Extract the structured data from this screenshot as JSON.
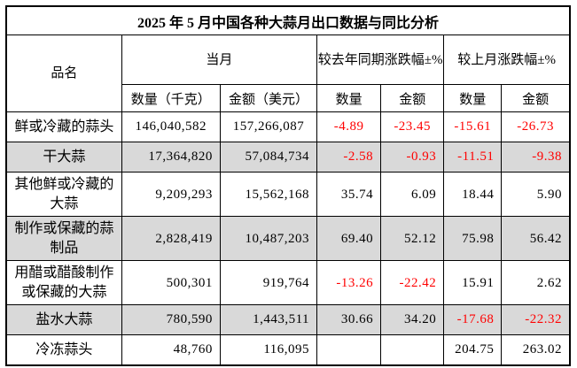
{
  "title": "2025 年 5 月中国各种大蒜月出口数据与同比分析",
  "colors": {
    "negative": "#ff0000",
    "row_alt_background": "#d9d9d9",
    "border": "#000000",
    "text": "#000000"
  },
  "header": {
    "product": "品名",
    "current_month": "当月",
    "yoy_group": "较去年同期涨跌幅±%",
    "mom_group": "较上月涨跌幅±%",
    "qty_kg": "数量（千克）",
    "amount_usd": "金额（美元）",
    "qty": "数量",
    "amount": "金额"
  },
  "rows": [
    {
      "name": "鲜或冷藏的蒜头",
      "qty_kg": "146,040,582",
      "amt_usd": "157,266,087",
      "yoy_qty": "-4.89",
      "yoy_amt": "-23.45",
      "mom_qty": "-15.61",
      "mom_amt": "-26.73"
    },
    {
      "name": "干大蒜",
      "qty_kg": "17,364,820",
      "amt_usd": "57,084,734",
      "yoy_qty": "-2.58",
      "yoy_amt": "-0.93",
      "mom_qty": "-11.51",
      "mom_amt": "-9.38"
    },
    {
      "name": "其他鲜或冷藏的大蒜",
      "qty_kg": "9,209,293",
      "amt_usd": "15,562,168",
      "yoy_qty": "35.74",
      "yoy_amt": "6.09",
      "mom_qty": "18.44",
      "mom_amt": "5.90"
    },
    {
      "name": "制作或保藏的蒜制品",
      "qty_kg": "2,828,419",
      "amt_usd": "10,487,203",
      "yoy_qty": "69.40",
      "yoy_amt": "52.12",
      "mom_qty": "75.98",
      "mom_amt": "56.42"
    },
    {
      "name": "用醋或醋酸制作或保藏的大蒜",
      "qty_kg": "500,301",
      "amt_usd": "919,764",
      "yoy_qty": "-13.26",
      "yoy_amt": "-22.42",
      "mom_qty": "15.91",
      "mom_amt": "2.62"
    },
    {
      "name": "盐水大蒜",
      "qty_kg": "780,590",
      "amt_usd": "1,443,511",
      "yoy_qty": "30.66",
      "yoy_amt": "34.20",
      "mom_qty": "-17.68",
      "mom_amt": "-22.32"
    },
    {
      "name": "冷冻蒜头",
      "qty_kg": "48,760",
      "amt_usd": "116,095",
      "yoy_qty": "",
      "yoy_amt": "",
      "mom_qty": "204.75",
      "mom_amt": "263.02"
    }
  ]
}
